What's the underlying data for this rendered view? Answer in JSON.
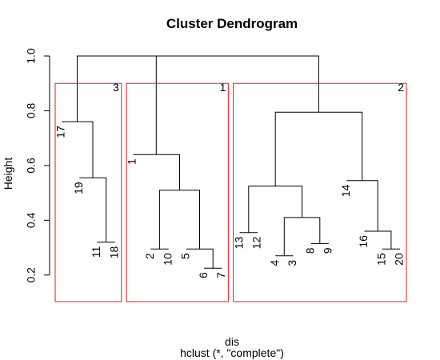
{
  "chart_data": {
    "type": "dendrogram",
    "title": "Cluster Dendrogram",
    "xlabel": "dis",
    "sublabel": "hclust (*, \"complete\")",
    "ylabel": "Height",
    "ylim": [
      0.1,
      1.0
    ],
    "yticks": [
      {
        "value": 0.2,
        "label": "0.2"
      },
      {
        "value": 0.4,
        "label": "0.4"
      },
      {
        "value": 0.6,
        "label": "0.6"
      },
      {
        "value": 0.8,
        "label": "0.8"
      },
      {
        "value": 1.0,
        "label": "1.0"
      }
    ],
    "leaf_order": [
      "17",
      "19",
      "11",
      "18",
      "1",
      "2",
      "10",
      "5",
      "6",
      "7",
      "13",
      "12",
      "4",
      "3",
      "8",
      "9",
      "14",
      "16",
      "15",
      "20"
    ],
    "leaf_heights": {
      "17": 0.76,
      "19": 0.555,
      "11": 0.32,
      "18": 0.32,
      "1": 0.64,
      "2": 0.295,
      "10": 0.295,
      "5": 0.295,
      "6": 0.225,
      "7": 0.225,
      "13": 0.355,
      "12": 0.355,
      "4": 0.27,
      "3": 0.27,
      "8": 0.315,
      "9": 0.315,
      "14": 0.545,
      "16": 0.36,
      "15": 0.295,
      "20": 0.295
    },
    "merges": [
      {
        "a": "11",
        "b": "18",
        "height": 0.32
      },
      {
        "a": "19",
        "b": "m1",
        "height": 0.555
      },
      {
        "a": "17",
        "b": "m2",
        "height": 0.76
      },
      {
        "a": "2",
        "b": "10",
        "height": 0.295
      },
      {
        "a": "6",
        "b": "7",
        "height": 0.225
      },
      {
        "a": "5",
        "b": "m5",
        "height": 0.295
      },
      {
        "a": "m4",
        "b": "m6",
        "height": 0.51
      },
      {
        "a": "1",
        "b": "m7",
        "height": 0.64
      },
      {
        "a": "13",
        "b": "12",
        "height": 0.355
      },
      {
        "a": "4",
        "b": "3",
        "height": 0.27
      },
      {
        "a": "8",
        "b": "9",
        "height": 0.315
      },
      {
        "a": "m10",
        "b": "m11",
        "height": 0.41
      },
      {
        "a": "m9",
        "b": "m12",
        "height": 0.525
      },
      {
        "a": "15",
        "b": "20",
        "height": 0.295
      },
      {
        "a": "16",
        "b": "m14",
        "height": 0.36
      },
      {
        "a": "14",
        "b": "m15",
        "height": 0.545
      },
      {
        "a": "m13",
        "b": "m16",
        "height": 0.795
      },
      {
        "a": "m8",
        "b": "m17",
        "height": 1.0
      },
      {
        "a": "m3",
        "b": "m18",
        "height": 1.0
      }
    ],
    "clusters": [
      {
        "label": "3",
        "first": "17",
        "last": "18",
        "color": "#e31a1c"
      },
      {
        "label": "1",
        "first": "1",
        "last": "7",
        "color": "#e31a1c"
      },
      {
        "label": "2",
        "first": "13",
        "last": "20",
        "color": "#e31a1c"
      }
    ],
    "cluster_box_height": 0.9,
    "grid": false
  }
}
